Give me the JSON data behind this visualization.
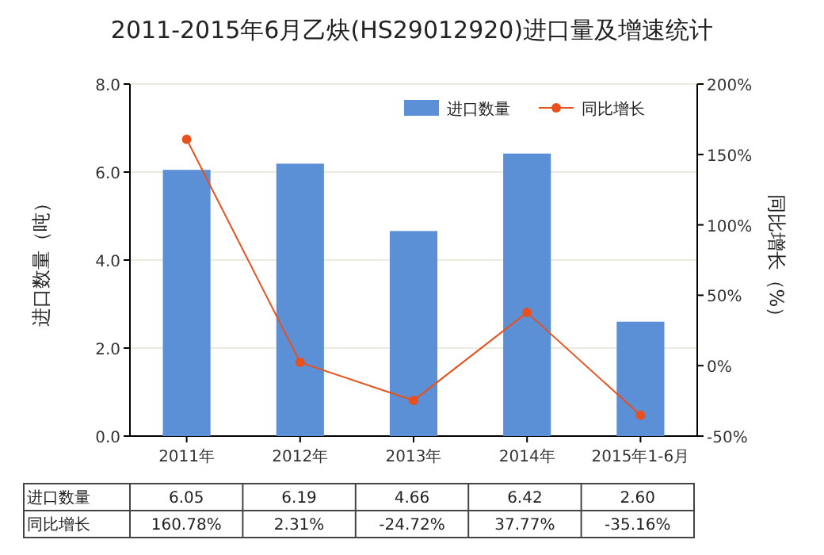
{
  "chart_data": {
    "type": "bar",
    "title": "2011-2015年6月乙炔(HS29012920)进口量及增速统计",
    "ylabel": "进口数量（吨）",
    "y2label": "同比增长（%）",
    "categories": [
      "2011年",
      "2012年",
      "2013年",
      "2014年",
      "2015年1-6月"
    ],
    "series": [
      {
        "name": "进口数量",
        "color": "#5b8fd6",
        "values": [
          6.05,
          6.19,
          4.66,
          6.42,
          2.6
        ],
        "value_labels": [
          "6.05",
          "6.19",
          "4.66",
          "6.42",
          "2.60"
        ]
      },
      {
        "name": "同比增长",
        "type": "line",
        "axis": "y2",
        "color": "#e8501e",
        "marker": "circle",
        "values": [
          160.78,
          2.31,
          -24.72,
          37.77,
          -35.16
        ],
        "value_labels": [
          "160.78%",
          "2.31%",
          "-24.72%",
          "37.77%",
          "-35.16%"
        ]
      }
    ],
    "ylim": [
      0,
      8
    ],
    "yticks": [
      {
        "value": 0,
        "label": "0.0"
      },
      {
        "value": 2,
        "label": "2.0"
      },
      {
        "value": 4,
        "label": "4.0"
      },
      {
        "value": 6,
        "label": "6.0"
      },
      {
        "value": 8,
        "label": "8.0"
      }
    ],
    "y2lim": [
      -50,
      200
    ],
    "y2ticks": [
      {
        "value": -50,
        "label": "-50%"
      },
      {
        "value": 0,
        "label": "0%"
      },
      {
        "value": 50,
        "label": "50%"
      },
      {
        "value": 100,
        "label": "100%"
      },
      {
        "value": 150,
        "label": "150%"
      },
      {
        "value": 200,
        "label": "200%"
      }
    ],
    "grid": "y",
    "legend": "top right"
  }
}
